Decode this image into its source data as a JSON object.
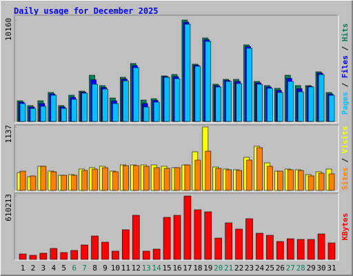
{
  "chart_data": [
    {
      "type": "bar",
      "title": "Daily usage for December 2025",
      "categories": [
        1,
        2,
        3,
        4,
        5,
        6,
        7,
        8,
        9,
        10,
        11,
        12,
        13,
        14,
        15,
        16,
        17,
        18,
        19,
        20,
        21,
        22,
        23,
        24,
        25,
        26,
        27,
        28,
        29,
        30,
        31
      ],
      "weekend_indices": [
        5,
        6,
        12,
        13,
        19,
        20,
        26,
        27
      ],
      "weekday_color": "#000000",
      "weekend_color": "#00805c",
      "legend_separator": " / ",
      "series": [
        {
          "name": "Hits",
          "color": "#00805c",
          "values": [
            2073,
            1590,
            2073,
            2903,
            1590,
            2626,
            3041,
            4631,
            3594,
            2350,
            4424,
            5806,
            2143,
            2281,
            4562,
            4700,
            10160,
            5737,
            8363,
            3732,
            4216,
            4216,
            7672,
            4009,
            3594,
            3318,
            4631,
            3594,
            3594,
            4976,
            2903
          ]
        },
        {
          "name": "Files",
          "color": "#0000ff",
          "values": [
            1935,
            1450,
            1800,
            2760,
            1450,
            2420,
            2940,
            4180,
            3420,
            2070,
            4250,
            5600,
            1800,
            2110,
            4490,
            4490,
            9950,
            5630,
            8190,
            3590,
            4110,
            4010,
            7500,
            3870,
            3460,
            3110,
            4320,
            3280,
            3520,
            4840,
            2760
          ]
        },
        {
          "name": "Pages",
          "color": "#00c0ff",
          "values": [
            1797,
            1313,
            1521,
            2626,
            1313,
            2212,
            2834,
            3732,
            3249,
            1797,
            4078,
            5391,
            1451,
            1935,
            4424,
            4285,
            9746,
            5529,
            8018,
            3456,
            4009,
            3801,
            7326,
            3732,
            3318,
            2903,
            4009,
            2972,
            3456,
            4700,
            2626
          ]
        }
      ],
      "ylim": [
        0,
        10160
      ],
      "yticks": [
        10160
      ]
    },
    {
      "type": "bar",
      "series": [
        {
          "name": "Visits",
          "color": "#ffff00",
          "values": [
            321,
            247,
            433,
            346,
            272,
            284,
            383,
            408,
            433,
            346,
            457,
            457,
            457,
            457,
            433,
            408,
            457,
            692,
            1137,
            420,
            383,
            371,
            593,
            791,
            494,
            346,
            383,
            371,
            284,
            334,
            383
          ]
        },
        {
          "name": "Sites",
          "color": "#ff8000",
          "values": [
            346,
            260,
            433,
            334,
            272,
            272,
            358,
            383,
            408,
            334,
            445,
            445,
            433,
            408,
            396,
            408,
            457,
            544,
            704,
            396,
            371,
            358,
            544,
            766,
            433,
            346,
            371,
            358,
            260,
            309,
            297
          ]
        }
      ],
      "ylim": [
        0,
        1137
      ],
      "yticks": [
        1137
      ]
    },
    {
      "type": "bar",
      "series": [
        {
          "name": "KBytes",
          "color": "#ff0000",
          "values": [
            53062,
            39797,
            59695,
            106124,
            66328,
            86226,
            139289,
            225514,
            165820,
            79594,
            285209,
            424496,
            79594,
            99492,
            404598,
            424496,
            610213,
            477558,
            457660,
            205617,
            351536,
            291841,
            391333,
            252045,
            232147,
            172451,
            198983,
            192350,
            192350,
            245408,
            159186
          ]
        }
      ],
      "ylim": [
        0,
        610213
      ],
      "yticks": [
        610213
      ]
    }
  ]
}
